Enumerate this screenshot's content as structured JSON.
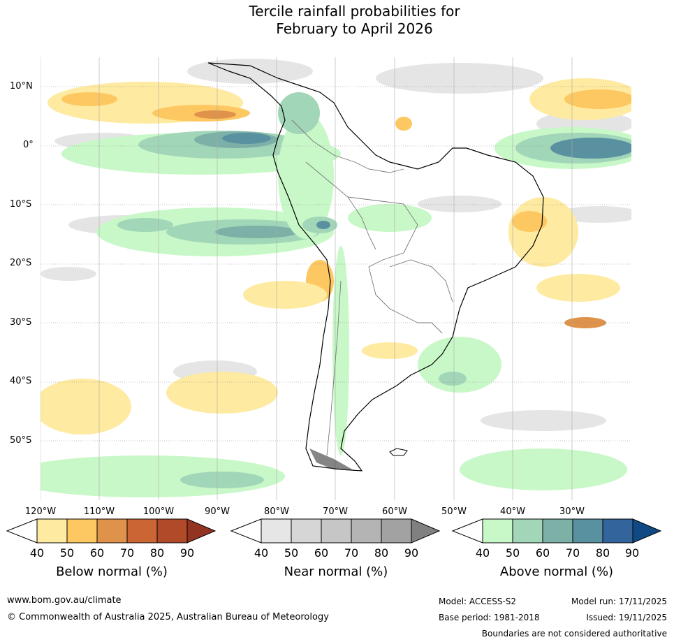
{
  "title": {
    "line1": "Tercile rainfall probabilities for",
    "line2": "February to April 2026"
  },
  "lat_labels": [
    "10°N",
    "0°",
    "10°S",
    "20°S",
    "30°S",
    "40°S",
    "50°S"
  ],
  "lon_labels": [
    "120°W",
    "110°W",
    "100°W",
    "90°W",
    "80°W",
    "70°W",
    "60°W",
    "50°W",
    "40°W",
    "30°W"
  ],
  "colorbars": [
    {
      "title": "Below normal (%)",
      "ticks": [
        "40",
        "50",
        "60",
        "70",
        "80",
        "90"
      ],
      "colors": [
        "#ffffff",
        "#feeaa0",
        "#fdc862",
        "#df924a",
        "#cb6533",
        "#b04a28",
        "#933422"
      ]
    },
    {
      "title": "Near normal (%)",
      "ticks": [
        "40",
        "50",
        "60",
        "70",
        "80",
        "90"
      ],
      "colors": [
        "#ffffff",
        "#e6e6e6",
        "#d6d6d6",
        "#c6c6c6",
        "#b4b4b4",
        "#a2a2a2",
        "#808080"
      ]
    },
    {
      "title": "Above normal (%)",
      "ticks": [
        "40",
        "50",
        "60",
        "70",
        "80",
        "90"
      ],
      "colors": [
        "#ffffff",
        "#c8f8c8",
        "#a2d6b8",
        "#7db1a8",
        "#5a91a0",
        "#34649c",
        "#0f4a84"
      ]
    }
  ],
  "footer": {
    "url": "www.bom.gov.au/climate",
    "copyright": "© Commonwealth of Australia 2025, Australian Bureau of Meteorology",
    "model": "Model: ACCESS-S2",
    "base_period": "Base period: 1981-2018",
    "model_run": "Model run: 17/11/2025",
    "issued": "Issued: 19/11/2025",
    "disclaimer": "Boundaries are not considered authoritative"
  }
}
